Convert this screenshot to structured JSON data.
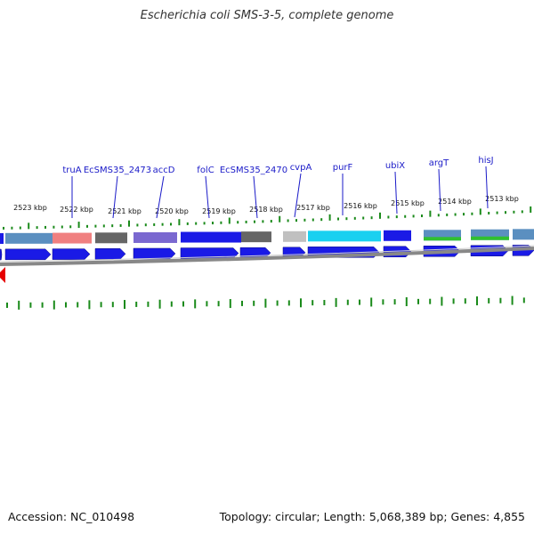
{
  "title": "Escherichia coli SMS-3-5, complete genome",
  "footer": {
    "accession": "Accession: NC_010498",
    "topology": "Topology: circular; Length: 5,068,389 bp; Genes: 4,855"
  },
  "gene_labels": [
    "truA",
    "EcSMS35_2473",
    "accD",
    "folC",
    "EcSMS35_2470",
    "cvpA",
    "purF",
    "ubiX",
    "argT",
    "hisJ"
  ],
  "kbp_ticks": [
    "2523 kbp",
    "2522 kbp",
    "2521 kbp",
    "2520 kbp",
    "2519 kbp",
    "2518 kbp",
    "2517 kbp",
    "2516 kbp",
    "2515 kbp",
    "2514 kbp",
    "2513 kbp"
  ],
  "colors": {
    "cds_arrow": "#1a1ae6",
    "label": "#1a1ac8",
    "tick": "#1a8a1a",
    "backbone": "#888888",
    "marker": "#e60000",
    "cog_blue": "#5b8fc0",
    "cog_pink": "#f08080",
    "cog_gray": "#666666",
    "cog_purple": "#7a68d0",
    "cog_lightgray": "#c0c0c0",
    "cog_cyan": "#1ad0f0",
    "cog_green": "#30c030"
  }
}
